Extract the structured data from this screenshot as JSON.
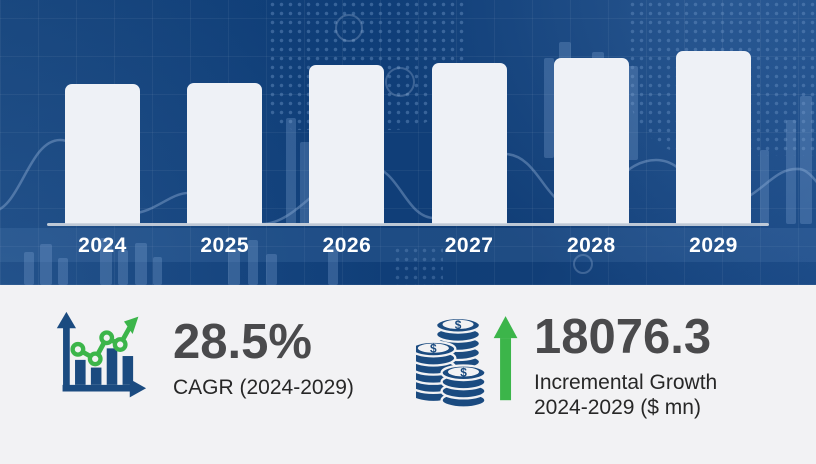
{
  "chart_data": {
    "type": "bar",
    "title": "",
    "categories": [
      "2024",
      "2025",
      "2026",
      "2027",
      "2028",
      "2029"
    ],
    "values": [
      140,
      141,
      159,
      161,
      166,
      173
    ],
    "value_unit": "relative bar height px (illustrative, no y-axis shown)",
    "xlabel": "",
    "ylabel": "",
    "legend": false,
    "gridlines": false,
    "bar_color": "#eef1f6",
    "axis_color": "#ccd4dd",
    "label_color": "#ffffff"
  },
  "stats": {
    "cagr": {
      "icon": "bar-chart-trend-icon",
      "value": "28.5%",
      "label": "CAGR (2024-2029)"
    },
    "growth": {
      "icon": "coin-stacks-growth-icon",
      "value": "18076.3",
      "label_line1": "Incremental Growth",
      "label_line2": "2024-2029 ($ mn)"
    }
  },
  "colors": {
    "hero_background": "#123f7a",
    "bar_fill": "#eef1f6",
    "panel_background": "#f2f2f4",
    "icon_navy": "#1b4b80",
    "accent_green": "#3cb54a",
    "stat_value_gray": "#4a4a4c",
    "stat_label_black": "#272727"
  }
}
